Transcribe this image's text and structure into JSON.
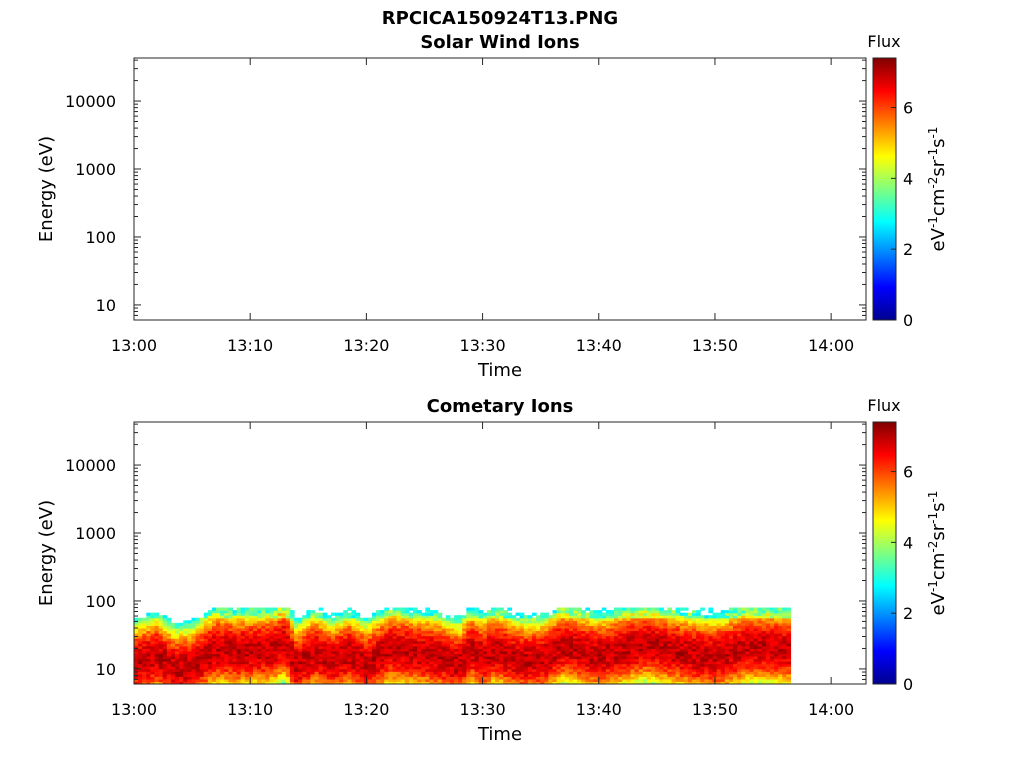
{
  "file_title": "RPCICA150924T13.PNG",
  "chart_data": [
    {
      "type": "heatmap",
      "title": "Solar Wind Ions",
      "xlabel": "Time",
      "ylabel": "Energy (eV)",
      "x_ticks": [
        "13:00",
        "13:10",
        "13:20",
        "13:30",
        "13:40",
        "13:50",
        "14:00"
      ],
      "xlim": [
        "13:00",
        "14:03"
      ],
      "y_scale": "log",
      "y_ticks": [
        "10",
        "100",
        "1000",
        "10000"
      ],
      "ylim": [
        6,
        43000
      ],
      "colorbar": {
        "title": "Flux",
        "label": "eV-1cm-2sr-1s-1",
        "ticks": [
          "0",
          "2",
          "4",
          "6"
        ],
        "range": [
          0,
          7.4
        ],
        "colormap": "jet"
      },
      "data_description": "no data"
    },
    {
      "type": "heatmap",
      "title": "Cometary Ions",
      "xlabel": "Time",
      "ylabel": "Energy (eV)",
      "x_ticks": [
        "13:00",
        "13:10",
        "13:20",
        "13:30",
        "13:40",
        "13:50",
        "14:00"
      ],
      "xlim": [
        "13:00",
        "14:03"
      ],
      "y_scale": "log",
      "y_ticks": [
        "10",
        "100",
        "1000",
        "10000"
      ],
      "ylim": [
        6,
        43000
      ],
      "colorbar": {
        "title": "Flux",
        "label": "eV-1cm-2sr-1s-1",
        "ticks": [
          "0",
          "2",
          "4",
          "6"
        ],
        "range": [
          0,
          7.4
        ],
        "colormap": "jet"
      },
      "data_end_time": "13:56.5",
      "max_energy_eV": 80,
      "peak_energy_profile": {
        "minutes_after_13": [
          0,
          2,
          3.5,
          5,
          7,
          9,
          12,
          13,
          14,
          15.5,
          17,
          18.5,
          20,
          22,
          24,
          26,
          28,
          29,
          30,
          31,
          33,
          35,
          37,
          40,
          44,
          47,
          50,
          53,
          56.5
        ],
        "energy_eV": [
          12,
          16,
          10,
          11,
          20,
          18,
          20,
          26,
          11,
          18,
          13,
          17,
          12,
          20,
          18,
          16,
          12,
          20,
          15,
          20,
          14,
          14,
          22,
          16,
          24,
          18,
          15,
          22,
          20
        ]
      }
    }
  ]
}
